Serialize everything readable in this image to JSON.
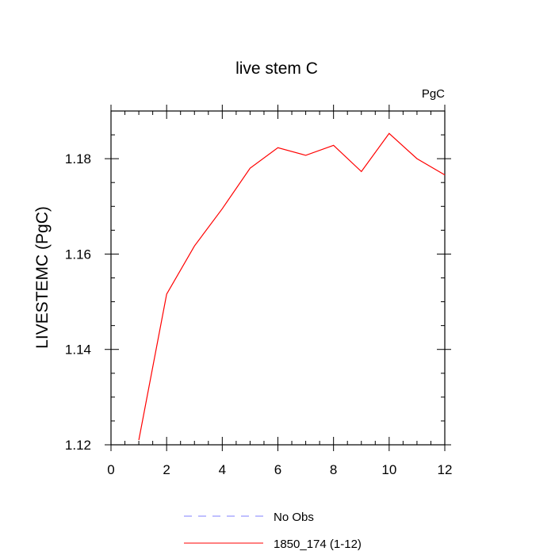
{
  "chart_data": {
    "type": "line",
    "title": "live stem C",
    "units_label": "PgC",
    "ylabel": "LIVESTEMC  (PgC)",
    "xlabel": "",
    "xlim": [
      0,
      12
    ],
    "ylim": [
      1.12,
      1.19
    ],
    "x_ticks": [
      0,
      2,
      4,
      6,
      8,
      10,
      12
    ],
    "y_ticks": [
      1.12,
      1.14,
      1.16,
      1.18
    ],
    "grid": false,
    "legend_position": "bottom-center",
    "series": [
      {
        "name": "No Obs",
        "style": "dashed",
        "color": "#8080ff",
        "x": [],
        "y": []
      },
      {
        "name": "1850_174 (1-12)",
        "style": "solid",
        "color": "#ff0000",
        "x": [
          1,
          2,
          3,
          4,
          5,
          6,
          7,
          8,
          9,
          10,
          11,
          12
        ],
        "y": [
          1.121,
          1.1516,
          1.1617,
          1.1695,
          1.178,
          1.1823,
          1.1807,
          1.1828,
          1.1773,
          1.1853,
          1.18,
          1.1766
        ]
      }
    ]
  }
}
